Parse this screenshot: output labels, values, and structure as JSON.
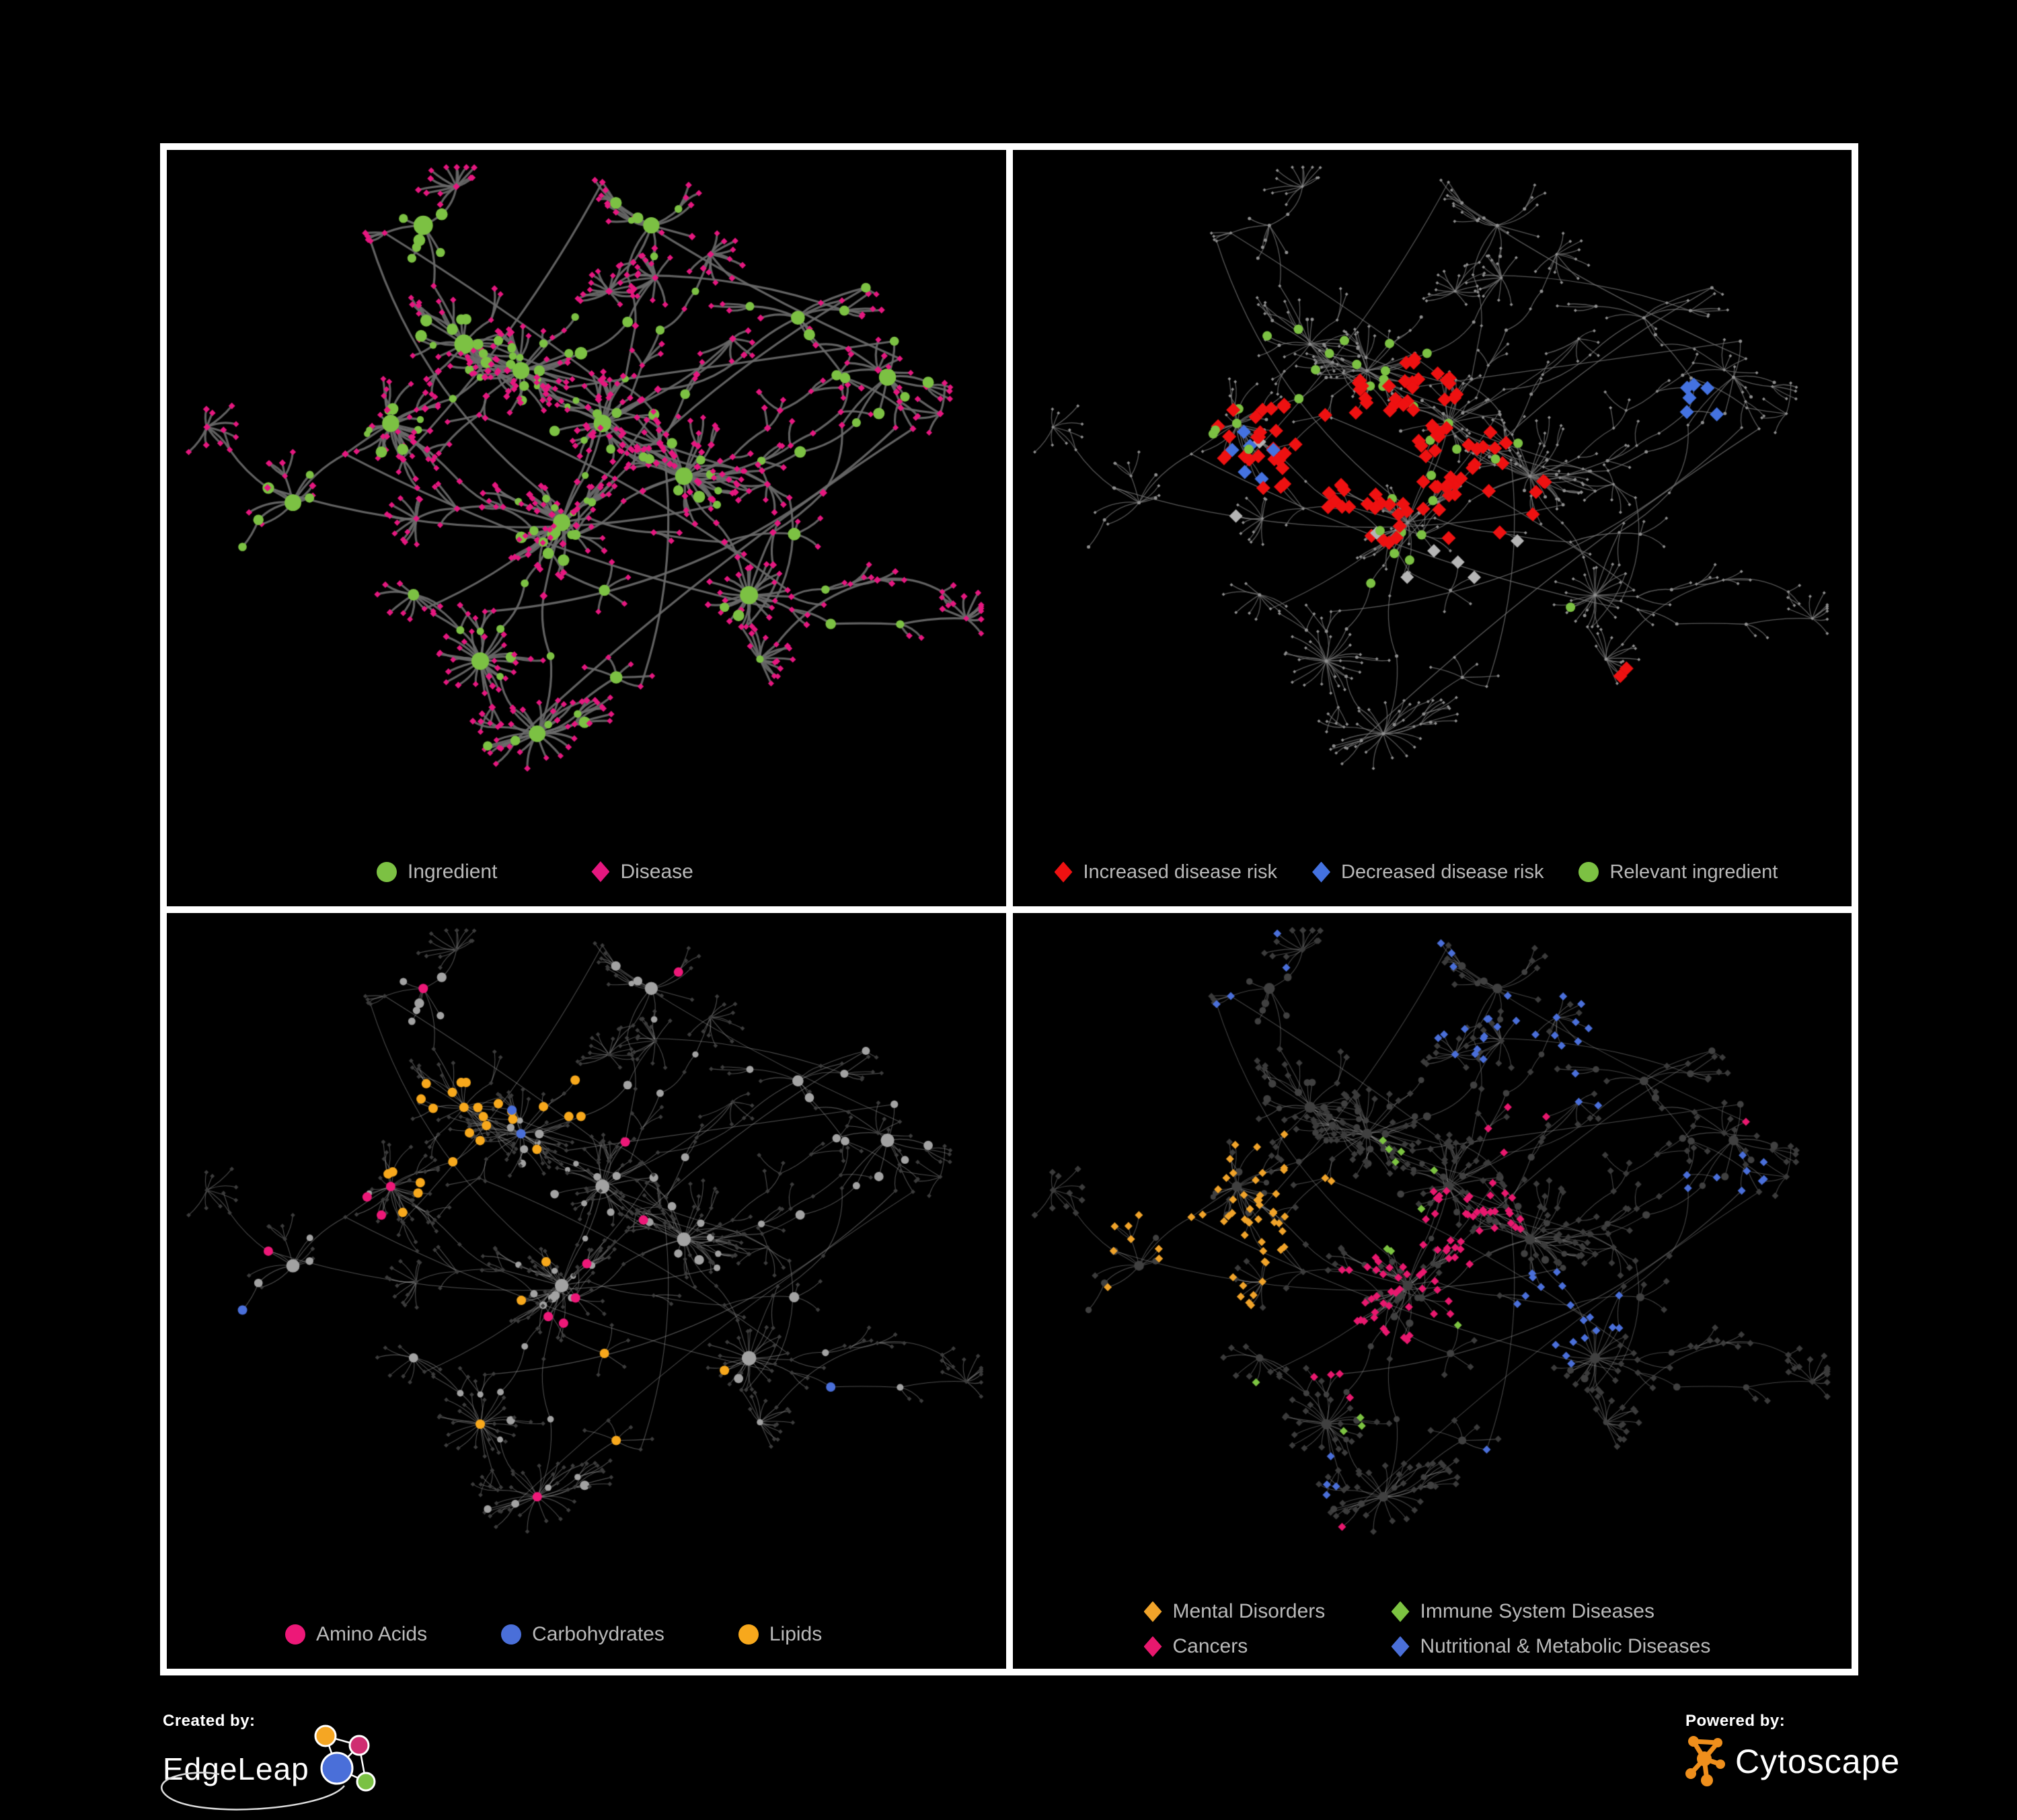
{
  "figure": {
    "background": "#000000",
    "frame_border": "#ffffff"
  },
  "footer": {
    "created_by_label": "Created by:",
    "created_by_name": "EdgeLeap",
    "powered_by_label": "Powered by:",
    "powered_by_name": "Cytoscape"
  },
  "chart_data": {
    "type": "network",
    "description": "Four views of the same ingredient-disease association network rendered by Cytoscape on a black background. Ingredients are circles, diseases are diamonds.",
    "panels": [
      {
        "name": "ingredient-disease-network",
        "legend": [
          {
            "label": "Ingredient",
            "color": "#7cc143",
            "shape": "circle"
          },
          {
            "label": "Disease",
            "color": "#e5177f",
            "shape": "diamond"
          }
        ],
        "style": {
          "mode": "full",
          "edge": {
            "color": "#6c6c6c",
            "width": 3.2,
            "alpha": 0.9
          },
          "full": {
            "i": {
              "color": "#7cc143",
              "mul": 1.05,
              "add": 0.5,
              "min": 4.5
            },
            "d": {
              "color": "#e5177f",
              "mul": 0.6,
              "add": 2.4,
              "min": 4.5
            }
          },
          "highlights": []
        }
      },
      {
        "name": "disease-risk-network",
        "legend": [
          {
            "label": "Increased disease risk",
            "color": "#ee1111",
            "shape": "diamond"
          },
          {
            "label": "Decreased disease risk",
            "color": "#4472e0",
            "shape": "diamond"
          },
          {
            "label": "Relevant ingredient",
            "color": "#7cc143",
            "shape": "circle"
          }
        ],
        "style": {
          "mode": "dim",
          "edge": {
            "color": "#757575",
            "width": 1.3,
            "alpha": 0.75
          },
          "dim": {
            "i": {
              "color": "#8f8f8f",
              "mul": 0,
              "add": 2.5,
              "min": 2.5
            },
            "d": {
              "color": "#8f8f8f",
              "mul": 0,
              "add": 2.5,
              "min": 2.5
            }
          },
          "highlights": [
            {
              "target": "d",
              "color": "#ee1111",
              "size": 10.5,
              "zones": [
                [
                  0.4,
                  0.46,
                  0.13,
                  0.6
                ],
                [
                  0.28,
                  0.42,
                  0.05,
                  0.5
                ],
                [
                  0.55,
                  0.5,
                  0.09,
                  0.4
                ],
                [
                  0.76,
                  0.82,
                  0.06,
                  0.55
                ],
                [
                  0.47,
                  0.34,
                  0.08,
                  0.3
                ]
              ]
            },
            {
              "target": "d",
              "color": "#4472e0",
              "size": 10.5,
              "zones": [
                [
                  0.29,
                  0.45,
                  0.06,
                  0.8
                ],
                [
                  0.83,
                  0.36,
                  0.04,
                  1.0
                ]
              ]
            },
            {
              "target": "d",
              "color": "#b5b5b5",
              "size": 10,
              "zones": [
                [
                  0.31,
                  0.5,
                  0.09,
                  0.25
                ],
                [
                  0.57,
                  0.6,
                  0.07,
                  0.3
                ],
                [
                  0.44,
                  0.6,
                  0.05,
                  0.2
                ]
              ]
            },
            {
              "target": "i",
              "color": "#7cc143",
              "size": 7,
              "zones": [
                [
                  0.42,
                  0.45,
                  0.22,
                  0.42
                ],
                [
                  0.2,
                  0.35,
                  0.1,
                  0.25
                ],
                [
                  0.62,
                  0.62,
                  0.08,
                  0.3
                ]
              ]
            }
          ]
        }
      },
      {
        "name": "nutrient-class-network",
        "legend": [
          {
            "label": "Amino Acids",
            "color": "#ed1878",
            "shape": "circle"
          },
          {
            "label": "Carbohydrates",
            "color": "#4a6fd9",
            "shape": "circle"
          },
          {
            "label": "Lipids",
            "color": "#f7a81c",
            "shape": "circle"
          }
        ],
        "style": {
          "mode": "dim",
          "edge": {
            "color": "#9a9a9a",
            "width": 1.1,
            "alpha": 0.5
          },
          "dim": {
            "i": {
              "color": "#a2a2a2",
              "mul": 0.8,
              "add": 0.8,
              "min": 3.4
            },
            "d": {
              "color": "#3c3c3c",
              "mul": 0,
              "add": 3.4,
              "min": 3.0
            }
          },
          "highlights": [
            {
              "target": "i",
              "color": "#f7a81c",
              "size": 7,
              "zones": [
                [
                  0.33,
                  0.3,
                  0.08,
                  0.85
                ],
                [
                  0.35,
                  0.42,
                  0.12,
                  0.35
                ],
                [
                  0.45,
                  0.3,
                  0.1,
                  0.3
                ],
                [
                  0.5,
                  0.55,
                  0.3,
                  0.1
                ],
                [
                  0.25,
                  0.6,
                  0.2,
                  0.08
                ]
              ]
            },
            {
              "target": "i",
              "color": "#4a6fd9",
              "size": 7,
              "zones": [
                [
                  0.33,
                  0.26,
                  0.09,
                  0.3
                ],
                [
                  0.5,
                  0.5,
                  0.45,
                  0.035
                ]
              ]
            },
            {
              "target": "i",
              "color": "#ed1878",
              "size": 7,
              "zones": [
                [
                  0.5,
                  0.45,
                  0.5,
                  0.07
                ],
                [
                  0.15,
                  0.55,
                  0.2,
                  0.12
                ],
                [
                  0.45,
                  0.75,
                  0.25,
                  0.1
                ]
              ]
            }
          ]
        }
      },
      {
        "name": "disease-class-network",
        "legend": [
          {
            "label": "Mental Disorders",
            "color": "#f0a32a",
            "shape": "diamond"
          },
          {
            "label": "Immune System Diseases",
            "color": "#7cc341",
            "shape": "diamond"
          },
          {
            "label": "Cancers",
            "color": "#e8186e",
            "shape": "diamond"
          },
          {
            "label": "Nutritional & Metabolic Diseases",
            "color": "#4a6fd9",
            "shape": "diamond"
          }
        ],
        "style": {
          "mode": "dim",
          "edge": {
            "color": "#9a9a9a",
            "width": 1.1,
            "alpha": 0.45
          },
          "dim": {
            "i": {
              "color": "#404040",
              "mul": 0.45,
              "add": 2.2,
              "min": 3.0
            },
            "d": {
              "color": "#3b3b3b",
              "mul": 0,
              "add": 5.0,
              "min": 4.5
            }
          },
          "highlights": [
            {
              "target": "d",
              "color": "#f0a32a",
              "size": 6,
              "zones": [
                [
                  0.22,
                  0.48,
                  0.12,
                  0.9
                ],
                [
                  0.3,
                  0.38,
                  0.08,
                  0.35
                ],
                [
                  0.13,
                  0.6,
                  0.07,
                  0.4
                ],
                [
                  0.35,
                  0.62,
                  0.06,
                  0.25
                ],
                [
                  0.12,
                  0.1,
                  0.05,
                  0.6
                ]
              ]
            },
            {
              "target": "d",
              "color": "#e8186e",
              "size": 6,
              "zones": [
                [
                  0.48,
                  0.55,
                  0.1,
                  0.75
                ],
                [
                  0.56,
                  0.44,
                  0.07,
                  0.5
                ],
                [
                  0.4,
                  0.68,
                  0.06,
                  0.4
                ],
                [
                  0.91,
                  0.27,
                  0.05,
                  0.85
                ],
                [
                  0.36,
                  0.95,
                  0.05,
                  0.6
                ],
                [
                  0.6,
                  0.3,
                  0.05,
                  0.3
                ]
              ]
            },
            {
              "target": "d",
              "color": "#4a6fd9",
              "size": 6,
              "zones": [
                [
                  0.66,
                  0.6,
                  0.08,
                  0.8
                ],
                [
                  0.74,
                  0.22,
                  0.1,
                  0.5
                ],
                [
                  0.86,
                  0.4,
                  0.07,
                  0.5
                ],
                [
                  0.57,
                  0.08,
                  0.15,
                  0.35
                ],
                [
                  0.32,
                  0.85,
                  0.07,
                  0.5
                ],
                [
                  0.47,
                  0.15,
                  0.06,
                  0.3
                ],
                [
                  0.25,
                  0.05,
                  0.08,
                  0.4
                ],
                [
                  0.6,
                  0.78,
                  0.05,
                  0.45
                ]
              ]
            },
            {
              "target": "d",
              "color": "#7cc341",
              "size": 6,
              "zones": [
                [
                  0.44,
                  0.42,
                  0.1,
                  0.18
                ],
                [
                  0.36,
                  0.72,
                  0.08,
                  0.15
                ],
                [
                  0.52,
                  0.6,
                  0.05,
                  0.15
                ]
              ]
            }
          ]
        }
      }
    ],
    "generation": {
      "seed": 11,
      "hubs": [
        [
          0.42,
          0.32
        ],
        [
          0.26,
          0.4
        ],
        [
          0.52,
          0.4
        ],
        [
          0.62,
          0.48
        ],
        [
          0.35,
          0.28
        ],
        [
          0.47,
          0.55
        ],
        [
          0.76,
          0.24
        ],
        [
          0.87,
          0.33
        ],
        [
          0.37,
          0.76
        ],
        [
          0.44,
          0.87
        ],
        [
          0.14,
          0.52
        ],
        [
          0.3,
          0.1
        ],
        [
          0.58,
          0.1
        ],
        [
          0.7,
          0.66
        ]
      ],
      "dense": [
        0,
        1,
        2,
        3,
        4,
        5
      ],
      "bursts": [
        8,
        9,
        13
      ],
      "links": [
        [
          0,
          1
        ],
        [
          0,
          2
        ],
        [
          0,
          4
        ],
        [
          1,
          10
        ],
        [
          2,
          3
        ],
        [
          2,
          5
        ],
        [
          3,
          13
        ],
        [
          6,
          7
        ],
        [
          2,
          6
        ],
        [
          5,
          9
        ],
        [
          5,
          8
        ],
        [
          4,
          11
        ],
        [
          2,
          12
        ],
        [
          13,
          7
        ],
        [
          8,
          9
        ]
      ],
      "arms": 28,
      "cross": 22
    }
  }
}
